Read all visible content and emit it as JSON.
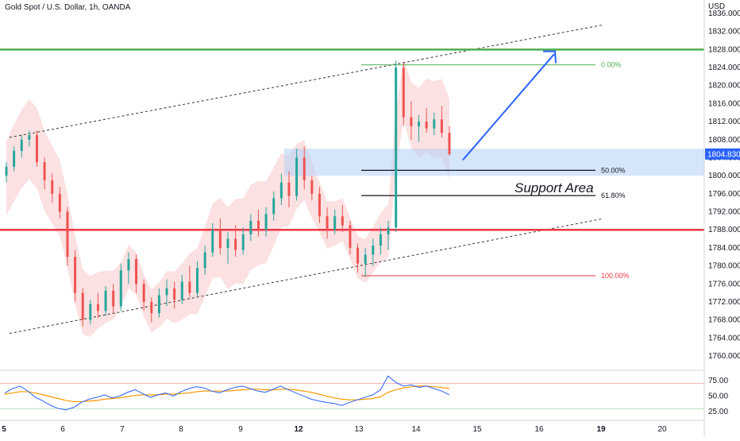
{
  "header": {
    "title": "Gold Spot / U.S. Dollar, 1h, OANDA"
  },
  "colors": {
    "up": "#26a69a",
    "down": "#ef5350",
    "bollinger": "#f8c9cb",
    "support_zone": "#b3d1f5",
    "green_line": "#4caf50",
    "red_line": "#f23645",
    "arrow": "#2962ff",
    "rsi_line": "#2962ff",
    "rsi_ma": "#ff9800",
    "price_badge": "#2962ff"
  },
  "chart_data": {
    "type": "candlestick",
    "currency": "USD",
    "ylim": [
      1757,
      1839
    ],
    "y_ticks": [
      1836,
      1832,
      1828,
      1824,
      1820,
      1816,
      1812,
      1808,
      1804,
      1800,
      1796,
      1792,
      1788,
      1784,
      1780,
      1776,
      1772,
      1768,
      1764,
      1760
    ],
    "x_ticks": [
      {
        "label": "5",
        "bold": true
      },
      {
        "label": "6",
        "bold": false
      },
      {
        "label": "7",
        "bold": false
      },
      {
        "label": "8",
        "bold": false
      },
      {
        "label": "9",
        "bold": false
      },
      {
        "label": "12",
        "bold": true
      },
      {
        "label": "13",
        "bold": false
      },
      {
        "label": "14",
        "bold": false
      },
      {
        "label": "15",
        "bold": false
      },
      {
        "label": "16",
        "bold": false
      },
      {
        "label": "19",
        "bold": true
      },
      {
        "label": "20",
        "bold": false
      }
    ],
    "current_price": "1804.830",
    "horizontal_levels": [
      {
        "name": "resistance",
        "price": 1828.0
      },
      {
        "name": "support",
        "price": 1788.0
      }
    ],
    "support_zone": {
      "label": "Support Area",
      "from": 1800.0,
      "to": 1806.0
    },
    "fibonacci": [
      {
        "label": "0.00%",
        "price": 1824.6
      },
      {
        "label": "50.00%",
        "price": 1801.2
      },
      {
        "label": "61.80%",
        "price": 1795.6
      },
      {
        "label": "100.00%",
        "price": 1777.8
      }
    ],
    "candles": [
      {
        "o": 1800.0,
        "h": 1803.0,
        "l": 1798.5,
        "c": 1802.0
      },
      {
        "o": 1802.0,
        "h": 1806.5,
        "l": 1801.0,
        "c": 1805.5
      },
      {
        "o": 1805.5,
        "h": 1809.0,
        "l": 1804.0,
        "c": 1808.0
      },
      {
        "o": 1808.0,
        "h": 1810.0,
        "l": 1806.5,
        "c": 1809.0
      },
      {
        "o": 1809.0,
        "h": 1810.0,
        "l": 1802.0,
        "c": 1803.0
      },
      {
        "o": 1803.0,
        "h": 1804.0,
        "l": 1797.0,
        "c": 1799.0
      },
      {
        "o": 1799.0,
        "h": 1800.5,
        "l": 1794.0,
        "c": 1796.0
      },
      {
        "o": 1796.0,
        "h": 1797.5,
        "l": 1790.5,
        "c": 1792.0
      },
      {
        "o": 1792.0,
        "h": 1793.0,
        "l": 1780.0,
        "c": 1782.0
      },
      {
        "o": 1782.0,
        "h": 1783.5,
        "l": 1772.0,
        "c": 1774.0
      },
      {
        "o": 1774.0,
        "h": 1775.0,
        "l": 1766.5,
        "c": 1768.0
      },
      {
        "o": 1768.0,
        "h": 1772.5,
        "l": 1767.0,
        "c": 1771.5
      },
      {
        "o": 1771.5,
        "h": 1774.0,
        "l": 1768.5,
        "c": 1770.0
      },
      {
        "o": 1770.0,
        "h": 1775.5,
        "l": 1769.0,
        "c": 1774.5
      },
      {
        "o": 1774.5,
        "h": 1776.0,
        "l": 1769.5,
        "c": 1771.0
      },
      {
        "o": 1771.0,
        "h": 1780.5,
        "l": 1770.0,
        "c": 1779.0
      },
      {
        "o": 1779.0,
        "h": 1783.0,
        "l": 1776.0,
        "c": 1781.5
      },
      {
        "o": 1781.5,
        "h": 1782.5,
        "l": 1774.0,
        "c": 1776.0
      },
      {
        "o": 1776.0,
        "h": 1777.0,
        "l": 1770.0,
        "c": 1772.0
      },
      {
        "o": 1772.0,
        "h": 1773.0,
        "l": 1767.5,
        "c": 1769.5
      },
      {
        "o": 1769.5,
        "h": 1775.0,
        "l": 1768.5,
        "c": 1773.5
      },
      {
        "o": 1773.5,
        "h": 1777.0,
        "l": 1771.0,
        "c": 1775.0
      },
      {
        "o": 1775.0,
        "h": 1776.5,
        "l": 1770.5,
        "c": 1772.5
      },
      {
        "o": 1772.5,
        "h": 1778.0,
        "l": 1771.5,
        "c": 1776.5
      },
      {
        "o": 1776.5,
        "h": 1780.0,
        "l": 1773.0,
        "c": 1774.0
      },
      {
        "o": 1774.0,
        "h": 1781.0,
        "l": 1773.0,
        "c": 1779.5
      },
      {
        "o": 1779.5,
        "h": 1784.5,
        "l": 1778.0,
        "c": 1783.0
      },
      {
        "o": 1783.0,
        "h": 1789.5,
        "l": 1782.0,
        "c": 1788.0
      },
      {
        "o": 1788.0,
        "h": 1790.5,
        "l": 1782.5,
        "c": 1784.0
      },
      {
        "o": 1784.0,
        "h": 1787.5,
        "l": 1780.5,
        "c": 1786.0
      },
      {
        "o": 1786.0,
        "h": 1789.0,
        "l": 1782.0,
        "c": 1783.5
      },
      {
        "o": 1783.5,
        "h": 1788.5,
        "l": 1782.5,
        "c": 1787.0
      },
      {
        "o": 1787.0,
        "h": 1791.5,
        "l": 1785.5,
        "c": 1790.0
      },
      {
        "o": 1790.0,
        "h": 1792.5,
        "l": 1786.5,
        "c": 1788.0
      },
      {
        "o": 1788.0,
        "h": 1793.0,
        "l": 1786.5,
        "c": 1791.5
      },
      {
        "o": 1791.5,
        "h": 1796.5,
        "l": 1790.0,
        "c": 1795.0
      },
      {
        "o": 1795.0,
        "h": 1800.5,
        "l": 1793.5,
        "c": 1798.5
      },
      {
        "o": 1798.5,
        "h": 1801.0,
        "l": 1793.0,
        "c": 1795.5
      },
      {
        "o": 1795.5,
        "h": 1806.0,
        "l": 1794.5,
        "c": 1804.0
      },
      {
        "o": 1804.0,
        "h": 1806.5,
        "l": 1797.0,
        "c": 1799.0
      },
      {
        "o": 1799.0,
        "h": 1800.0,
        "l": 1794.5,
        "c": 1796.0
      },
      {
        "o": 1796.0,
        "h": 1797.5,
        "l": 1789.5,
        "c": 1791.0
      },
      {
        "o": 1791.0,
        "h": 1793.0,
        "l": 1786.0,
        "c": 1788.0
      },
      {
        "o": 1788.0,
        "h": 1792.5,
        "l": 1787.0,
        "c": 1791.0
      },
      {
        "o": 1791.0,
        "h": 1793.5,
        "l": 1787.5,
        "c": 1789.0
      },
      {
        "o": 1789.0,
        "h": 1790.0,
        "l": 1782.5,
        "c": 1784.0
      },
      {
        "o": 1784.0,
        "h": 1785.0,
        "l": 1778.5,
        "c": 1780.5
      },
      {
        "o": 1780.5,
        "h": 1784.0,
        "l": 1777.5,
        "c": 1782.5
      },
      {
        "o": 1782.5,
        "h": 1786.0,
        "l": 1780.0,
        "c": 1784.5
      },
      {
        "o": 1784.5,
        "h": 1788.5,
        "l": 1782.5,
        "c": 1787.0
      },
      {
        "o": 1787.0,
        "h": 1790.0,
        "l": 1783.5,
        "c": 1788.5
      },
      {
        "o": 1788.5,
        "h": 1825.5,
        "l": 1787.5,
        "c": 1824.0
      },
      {
        "o": 1824.0,
        "h": 1825.0,
        "l": 1811.0,
        "c": 1813.0
      },
      {
        "o": 1813.0,
        "h": 1816.5,
        "l": 1808.0,
        "c": 1811.0
      },
      {
        "o": 1811.0,
        "h": 1813.5,
        "l": 1807.5,
        "c": 1812.0
      },
      {
        "o": 1812.0,
        "h": 1815.0,
        "l": 1809.5,
        "c": 1810.5
      },
      {
        "o": 1810.5,
        "h": 1814.0,
        "l": 1809.0,
        "c": 1812.5
      },
      {
        "o": 1812.5,
        "h": 1815.5,
        "l": 1808.5,
        "c": 1809.5
      },
      {
        "o": 1809.5,
        "h": 1811.0,
        "l": 1804.5,
        "c": 1804.8
      }
    ],
    "indicator": {
      "type": "RSI",
      "y_ticks": [
        "75.00",
        "50.00",
        "25.00"
      ],
      "bands": [
        70,
        30
      ],
      "values": [
        55,
        62,
        66,
        58,
        48,
        42,
        35,
        30,
        28,
        32,
        40,
        45,
        48,
        52,
        47,
        50,
        56,
        60,
        54,
        48,
        52,
        55,
        50,
        57,
        62,
        65,
        63,
        58,
        55,
        60,
        64,
        66,
        62,
        58,
        56,
        61,
        66,
        60,
        55,
        50,
        45,
        42,
        40,
        38,
        35,
        40,
        44,
        48,
        52,
        60,
        82,
        72,
        66,
        68,
        64,
        66,
        62,
        58,
        52
      ],
      "ma": [
        53,
        55,
        57,
        57,
        55,
        52,
        49,
        46,
        43,
        41,
        41,
        42,
        43,
        45,
        46,
        47,
        49,
        51,
        52,
        52,
        52,
        53,
        53,
        54,
        55,
        57,
        58,
        58,
        58,
        58,
        59,
        60,
        61,
        61,
        60,
        60,
        61,
        61,
        60,
        58,
        56,
        53,
        50,
        47,
        45,
        44,
        44,
        45,
        46,
        49,
        56,
        60,
        63,
        65,
        66,
        66,
        65,
        64,
        62
      ]
    }
  }
}
